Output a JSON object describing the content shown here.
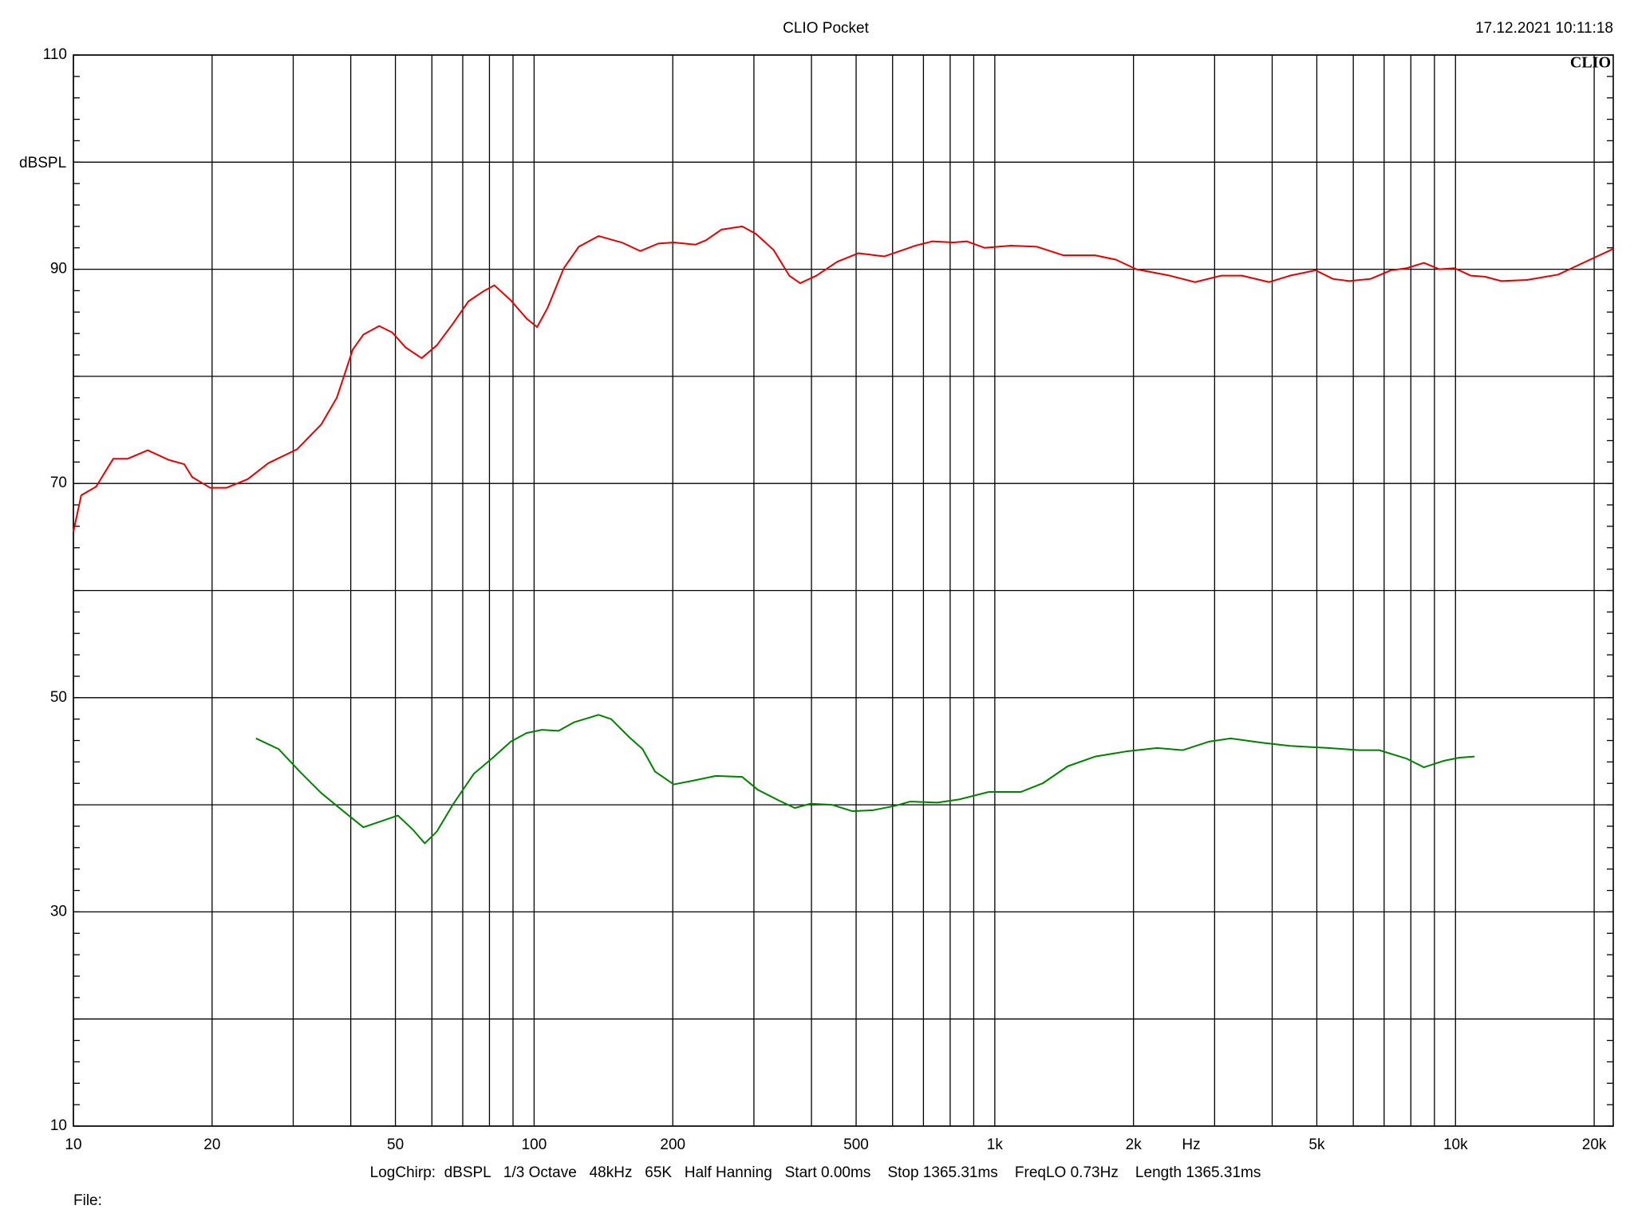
{
  "chart_data": {
    "type": "line",
    "title": "CLIO Pocket",
    "timestamp": "17.12.2021 10:11:18",
    "logo": "CLIO",
    "y_label": "dBSPL",
    "x_label": "Hz",
    "footer": "LogChirp:  dBSPL   1/3 Octave   48kHz   65K   Half Hanning   Start 0.00ms    Stop 1365.31ms    FreqLO 0.73Hz    Length 1365.31ms",
    "file_label": "File:",
    "x_log": true,
    "xlim": [
      10,
      22000
    ],
    "ylim": [
      10,
      110
    ],
    "xticks": [
      10,
      20,
      50,
      100,
      200,
      500,
      {
        "value": 1000,
        "label": "1k"
      },
      {
        "value": 2000,
        "label": "2k"
      },
      {
        "value": 5000,
        "label": "5k"
      },
      {
        "value": 10000,
        "label": "10k"
      },
      {
        "value": 20000,
        "label": "20k"
      }
    ],
    "x_minor_grid": [
      30,
      40,
      60,
      70,
      80,
      90,
      300,
      400,
      600,
      700,
      800,
      900,
      3000,
      4000,
      6000,
      7000,
      8000,
      9000
    ],
    "yticks": [
      10,
      30,
      50,
      70,
      90,
      110
    ],
    "y_minor_grid": [
      20,
      40,
      60,
      80,
      100
    ],
    "y_minor_step": 2,
    "grid": true,
    "series": [
      {
        "color": "#e00000",
        "x": [
          10,
          10.4,
          11.2,
          12.2,
          13.1,
          14.5,
          16.1,
          17.4,
          18.1,
          19.8,
          21.5,
          23.9,
          26.5,
          30.6,
          34.5,
          37.3,
          40.4,
          42.6,
          46.1,
          49.2,
          52.6,
          57,
          61.5,
          66.6,
          72,
          78,
          82,
          89,
          96.3,
          101.5,
          107,
          116,
          125,
          138,
          155,
          170,
          186,
          201,
          224,
          236,
          255,
          283,
          303,
          331,
          358,
          378,
          410,
          455,
          506,
          576,
          622,
          672,
          731,
          813,
          870,
          950,
          1085,
          1235,
          1410,
          1650,
          1830,
          2030,
          2400,
          2720,
          3100,
          3440,
          3940,
          4370,
          4970,
          5420,
          5880,
          6540,
          7240,
          7840,
          8540,
          9220,
          9950,
          10800,
          11600,
          12570,
          14300,
          16700,
          19600,
          22000
        ],
        "values": [
          65.5,
          68.9,
          69.7,
          72.3,
          72.3,
          73.1,
          72.2,
          71.8,
          70.6,
          69.6,
          69.6,
          70.4,
          71.9,
          73.2,
          75.5,
          78.0,
          82.5,
          83.9,
          84.7,
          84.1,
          82.7,
          81.7,
          82.9,
          84.9,
          87.0,
          88.0,
          88.5,
          87.1,
          85.4,
          84.6,
          86.4,
          90.1,
          92.1,
          93.1,
          92.5,
          91.7,
          92.4,
          92.5,
          92.3,
          92.7,
          93.7,
          94.0,
          93.3,
          91.8,
          89.4,
          88.7,
          89.4,
          90.7,
          91.5,
          91.2,
          91.7,
          92.2,
          92.6,
          92.5,
          92.6,
          92.0,
          92.2,
          92.1,
          91.3,
          91.3,
          90.9,
          90.0,
          89.4,
          88.8,
          89.4,
          89.4,
          88.8,
          89.4,
          89.9,
          89.1,
          88.9,
          89.1,
          89.9,
          90.1,
          90.6,
          90.0,
          90.1,
          89.4,
          89.3,
          88.9,
          89.0,
          89.5,
          90.9,
          91.9
        ]
      },
      {
        "color": "#008000",
        "x": [
          24.9,
          27.9,
          31,
          34.5,
          38.3,
          42.6,
          46.1,
          50.6,
          54.5,
          57.9,
          61.5,
          66.6,
          74,
          81.4,
          89,
          96.3,
          104,
          113,
          122,
          138,
          147,
          161,
          172,
          183,
          201,
          224,
          248,
          283,
          306,
          340,
          368,
          398,
          443,
          491,
          545,
          607,
          655,
          750,
          837,
          970,
          1140,
          1270,
          1440,
          1650,
          1940,
          2250,
          2560,
          2920,
          3250,
          3800,
          4370,
          5300,
          6170,
          6830,
          7840,
          8540,
          9420,
          10200,
          11000
        ],
        "values": [
          46.2,
          45.2,
          43.1,
          41.1,
          39.5,
          37.9,
          38.4,
          39.0,
          37.7,
          36.4,
          37.5,
          40.0,
          42.9,
          44.4,
          45.9,
          46.7,
          47.0,
          46.9,
          47.7,
          48.4,
          48.0,
          46.3,
          45.2,
          43.1,
          41.9,
          42.3,
          42.7,
          42.6,
          41.4,
          40.4,
          39.7,
          40.1,
          40.0,
          39.4,
          39.5,
          39.9,
          40.3,
          40.2,
          40.5,
          41.2,
          41.2,
          42.0,
          43.6,
          44.5,
          45.0,
          45.3,
          45.1,
          45.9,
          46.2,
          45.8,
          45.5,
          45.3,
          45.1,
          45.1,
          44.3,
          43.5,
          44.1,
          44.4,
          44.5
        ]
      }
    ]
  }
}
